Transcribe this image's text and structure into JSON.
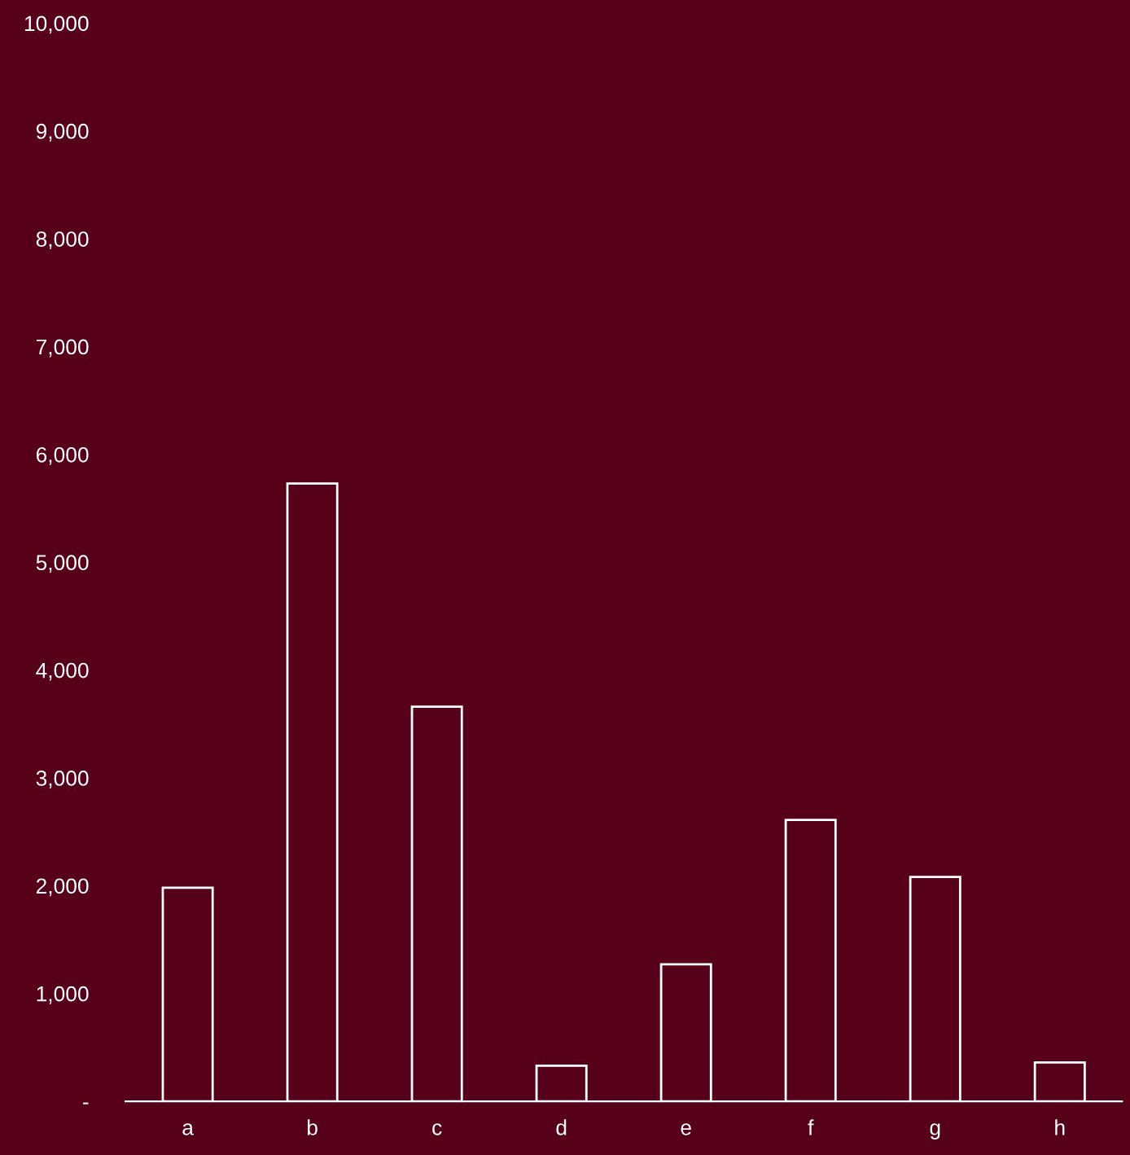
{
  "chart_data": {
    "type": "bar",
    "categories": [
      "a",
      "b",
      "c",
      "d",
      "e",
      "f",
      "g",
      "h"
    ],
    "values": [
      1980,
      5730,
      3660,
      330,
      1270,
      2610,
      2080,
      360
    ],
    "color": "#ffffff",
    "ylim": [
      0,
      10000
    ],
    "yticks": [
      {
        "value": 0,
        "label": "-"
      },
      {
        "value": 1000,
        "label": "1,000"
      },
      {
        "value": 2000,
        "label": "2,000"
      },
      {
        "value": 3000,
        "label": "3,000"
      },
      {
        "value": 4000,
        "label": "4,000"
      },
      {
        "value": 5000,
        "label": "5,000"
      },
      {
        "value": 6000,
        "label": "6,000"
      },
      {
        "value": 7000,
        "label": "7,000"
      },
      {
        "value": 8000,
        "label": "8,000"
      },
      {
        "value": 9000,
        "label": "9,000"
      },
      {
        "value": 10000,
        "label": "10,000"
      }
    ],
    "grid": false,
    "legend": false
  }
}
